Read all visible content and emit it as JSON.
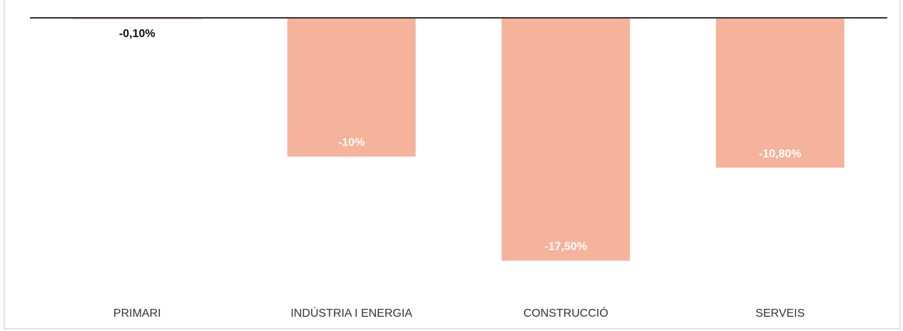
{
  "chart_data": {
    "type": "bar",
    "categories": [
      "PRIMARI",
      "INDÚSTRIA I ENERGIA",
      "CONSTRUCCIÓ",
      "SERVEIS"
    ],
    "values": [
      -0.1,
      -10,
      -17.5,
      -10.8
    ],
    "value_labels": [
      "-0,10%",
      "-10%",
      "-17,50%",
      "-10,80%"
    ],
    "color": "#f4b39a",
    "ylim": [
      -20,
      0
    ]
  }
}
